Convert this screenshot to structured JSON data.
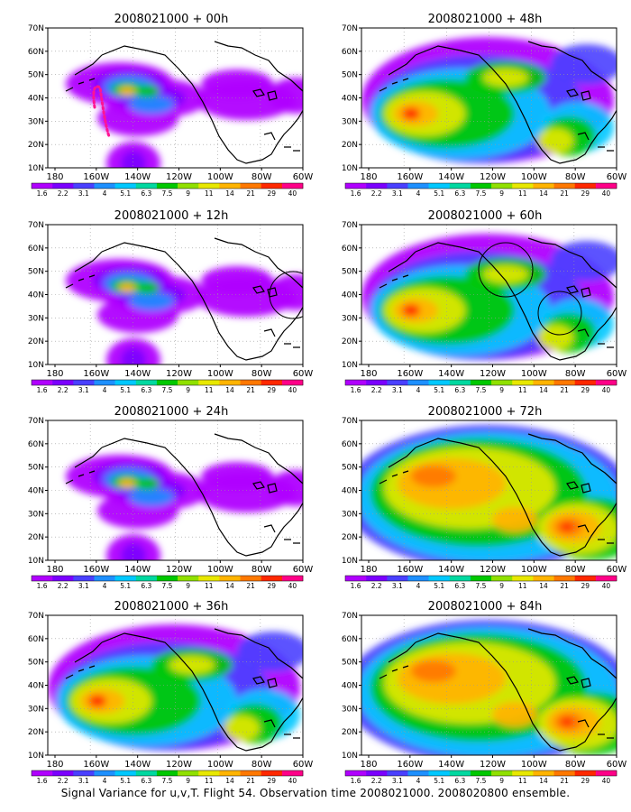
{
  "axes": {
    "y_labels": [
      "70N",
      "60N",
      "50N",
      "40N",
      "30N",
      "20N",
      "10N"
    ],
    "x_labels": [
      "180",
      "160W",
      "140W",
      "120W",
      "100W",
      "80W",
      "60W"
    ]
  },
  "colorbar": {
    "labels": [
      "1.6",
      "2.2",
      "3.1",
      "4",
      "5.1",
      "6.3",
      "7.5",
      "9",
      "11",
      "14",
      "21",
      "29",
      "40"
    ],
    "colors": [
      "#b000ff",
      "#7b00ff",
      "#4a40ff",
      "#1e90ff",
      "#00c8ff",
      "#00d8a0",
      "#00c800",
      "#90e000",
      "#e8e800",
      "#ffb400",
      "#ff7800",
      "#ff2800",
      "#ff0088"
    ]
  },
  "panels": [
    {
      "title": "2008021000 + 00h",
      "level": "low",
      "circles": []
    },
    {
      "title": "2008021000 + 48h",
      "level": "mid",
      "circles": []
    },
    {
      "title": "2008021000 + 12h",
      "level": "low",
      "circles": [
        "east"
      ]
    },
    {
      "title": "2008021000 + 60h",
      "level": "mid",
      "circles": [
        "west",
        "southeast"
      ]
    },
    {
      "title": "2008021000 + 24h",
      "level": "low",
      "circles": []
    },
    {
      "title": "2008021000 + 72h",
      "level": "high",
      "circles": []
    },
    {
      "title": "2008021000 + 36h",
      "level": "mid",
      "circles": []
    },
    {
      "title": "2008021000 + 84h",
      "level": "high",
      "circles": []
    }
  ],
  "footer": "Signal Variance for u,v,T. Flight 54. Observation time 2008021000. 2008020800 ensemble."
}
